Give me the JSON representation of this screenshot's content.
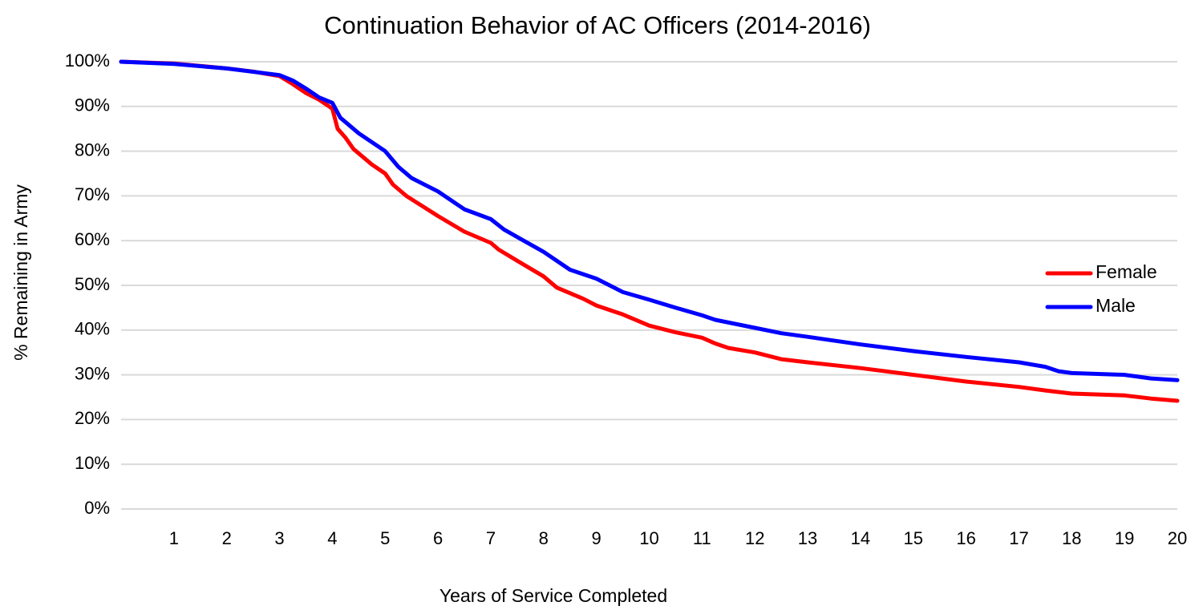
{
  "chart_data": {
    "type": "line",
    "title": "Continuation Behavior of AC Officers (2014-2016)",
    "x_label": "Years of Service Completed",
    "y_label": "% Remaining in Army",
    "xlim": [
      0,
      20
    ],
    "xticks": [
      1,
      2,
      3,
      4,
      5,
      6,
      7,
      8,
      9,
      10,
      11,
      12,
      13,
      14,
      15,
      16,
      17,
      18,
      19,
      20
    ],
    "ylim": [
      0,
      100
    ],
    "yticks": [
      {
        "value": 0,
        "label": "0%"
      },
      {
        "value": 10,
        "label": "10%"
      },
      {
        "value": 20,
        "label": "20%"
      },
      {
        "value": 30,
        "label": "30%"
      },
      {
        "value": 40,
        "label": "40%"
      },
      {
        "value": 50,
        "label": "50%"
      },
      {
        "value": 60,
        "label": "60%"
      },
      {
        "value": 70,
        "label": "70%"
      },
      {
        "value": 80,
        "label": "80%"
      },
      {
        "value": 90,
        "label": "90%"
      },
      {
        "value": 100,
        "label": "100%"
      }
    ],
    "grid": true,
    "legend": "right",
    "series": [
      {
        "name": "Female",
        "color": "#ff0000",
        "x": [
          0,
          1,
          2,
          2.5,
          3,
          3.25,
          3.5,
          3.75,
          4,
          4.1,
          4.25,
          4.4,
          4.75,
          5,
          5.15,
          5.4,
          5.6,
          6,
          6.5,
          7,
          7.15,
          7.5,
          8,
          8.25,
          8.75,
          9,
          9.5,
          10,
          10.5,
          11,
          11.25,
          11.5,
          12,
          12.5,
          13,
          14,
          15,
          16,
          17,
          17.5,
          18,
          19,
          19.5,
          20
        ],
        "values": [
          100,
          99.6,
          98.5,
          97.8,
          96.8,
          95,
          93,
          91.5,
          89.5,
          85,
          83,
          80.5,
          77,
          75,
          72.5,
          70,
          68.5,
          65.5,
          62,
          59.5,
          58,
          55.5,
          52,
          49.5,
          47,
          45.5,
          43.5,
          41,
          39.5,
          38.3,
          37,
          36,
          35,
          33.5,
          32.8,
          31.5,
          30,
          28.5,
          27.3,
          26.5,
          25.8,
          25.4,
          24.7,
          24.2
        ]
      },
      {
        "name": "Male",
        "color": "#0000ff",
        "x": [
          0,
          1,
          2,
          3,
          3.25,
          3.5,
          3.75,
          4,
          4.15,
          4.5,
          5,
          5.25,
          5.5,
          6,
          6.5,
          7,
          7.25,
          7.5,
          8,
          8.5,
          9,
          9.5,
          10,
          10.5,
          11,
          11.25,
          12,
          12.5,
          13,
          14,
          15,
          16,
          17,
          17.5,
          17.75,
          18,
          19,
          19.5,
          20
        ],
        "values": [
          100,
          99.5,
          98.5,
          97,
          95.8,
          94,
          92,
          90.8,
          87.5,
          84,
          80,
          76.5,
          74,
          71,
          67,
          64.8,
          62.5,
          60.8,
          57.5,
          53.5,
          51.5,
          48.5,
          46.8,
          45,
          43.3,
          42.3,
          40.5,
          39.3,
          38.5,
          36.8,
          35.3,
          34,
          32.8,
          31.8,
          30.8,
          30.4,
          30,
          29.2,
          28.8
        ]
      }
    ]
  }
}
